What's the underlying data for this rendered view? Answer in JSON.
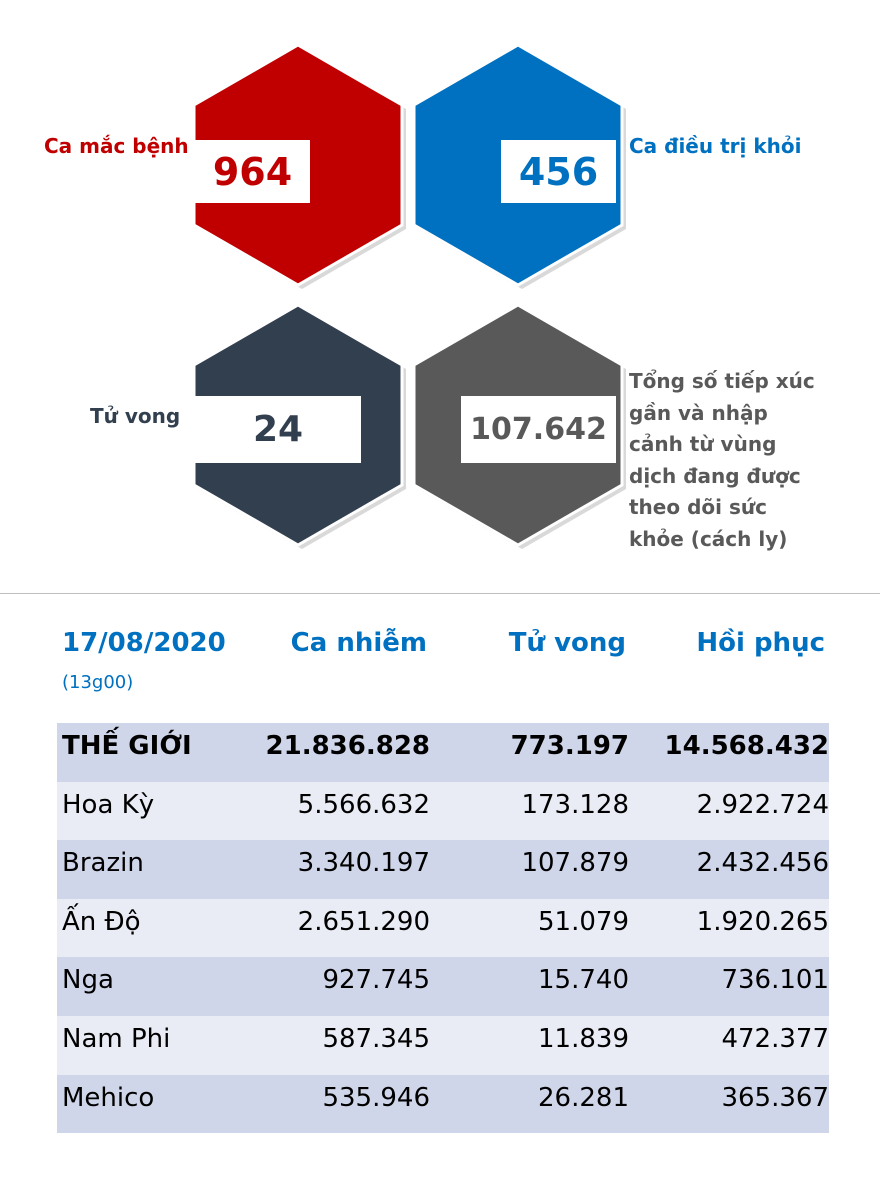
{
  "stats": {
    "cases": {
      "label": "Ca mắc bệnh",
      "value": "964",
      "color": "#c00000"
    },
    "recovered": {
      "label": "Ca điều trị khỏi",
      "value": "456",
      "color": "#0070c0"
    },
    "deaths": {
      "label": "Tử vong",
      "value": "24",
      "color": "#323f4f"
    },
    "monitored": {
      "label": "Tổng số tiếp xúc gần và nhập cảnh từ vùng dịch đang được theo dõi sức khỏe (cách ly)",
      "label_lines": [
        "Tổng số tiếp xúc",
        "gần và nhập",
        "cảnh từ vùng",
        "dịch đang được",
        "theo dõi sức",
        "khỏe (cách ly)"
      ],
      "value": "107.642",
      "color": "#595959"
    }
  },
  "table": {
    "date": "17/08/2020",
    "time": "(13g00)",
    "headers": [
      "Ca nhiễm",
      "Tử vong",
      "Hồi phục"
    ],
    "rows": [
      {
        "name": "THẾ GIỚI",
        "cases": "21.836.828",
        "deaths": "773.197",
        "recovered": "14.568.432"
      },
      {
        "name": "Hoa Kỳ",
        "cases": "5.566.632",
        "deaths": "173.128",
        "recovered": "2.922.724"
      },
      {
        "name": "Brazin",
        "cases": "3.340.197",
        "deaths": "107.879",
        "recovered": "2.432.456"
      },
      {
        "name": "Ấn Độ",
        "cases": "2.651.290",
        "deaths": "51.079",
        "recovered": "1.920.265"
      },
      {
        "name": "Nga",
        "cases": "927.745",
        "deaths": "15.740",
        "recovered": "736.101"
      },
      {
        "name": "Nam Phi",
        "cases": "587.345",
        "deaths": "11.839",
        "recovered": "472.377"
      },
      {
        "name": "Mehico",
        "cases": "535.946",
        "deaths": "26.281",
        "recovered": "365.367"
      }
    ]
  }
}
